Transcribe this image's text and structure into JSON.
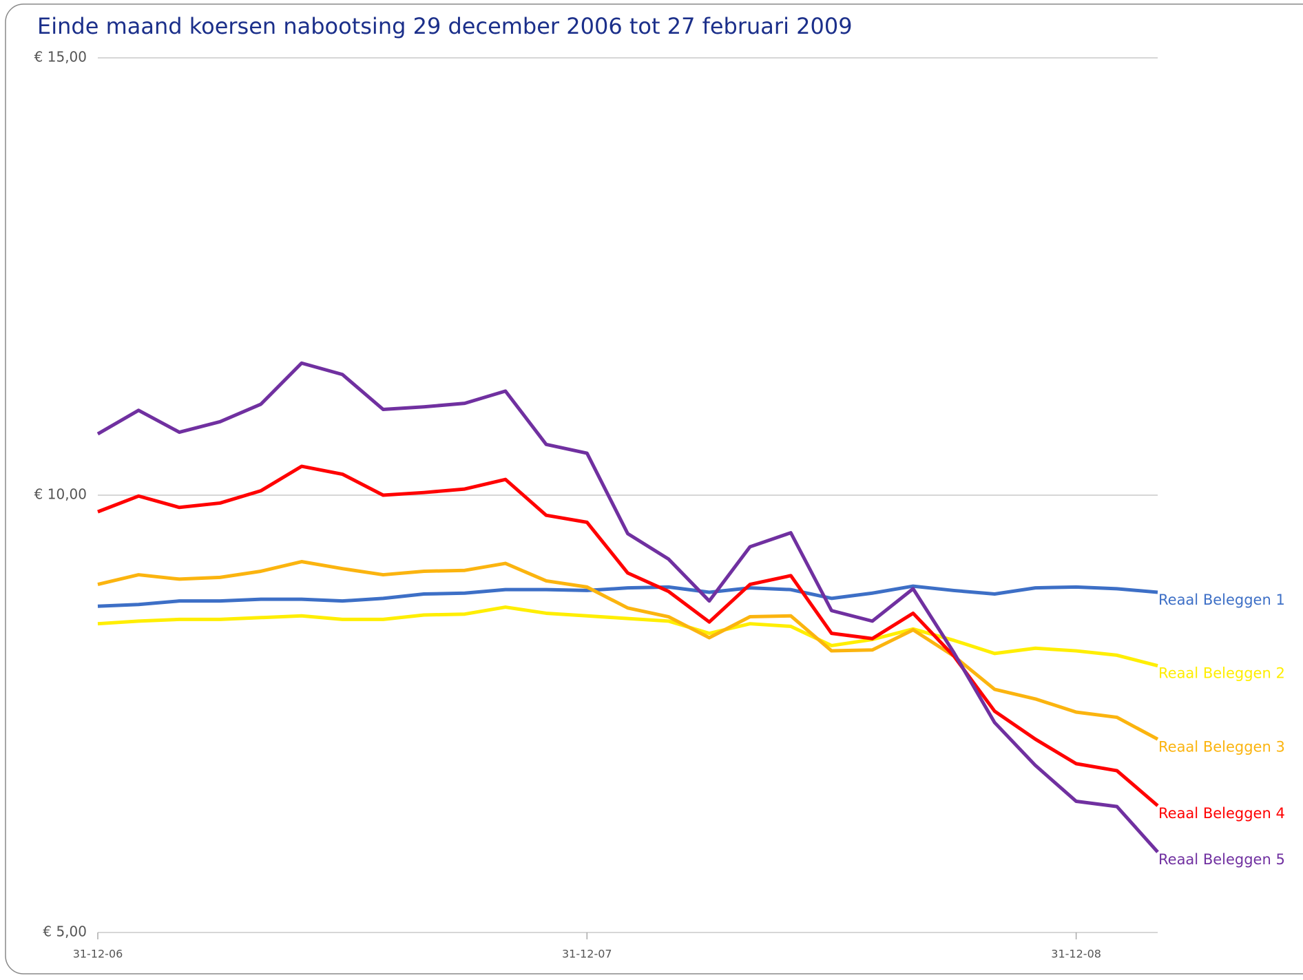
{
  "chart_data": {
    "type": "line",
    "title": "Einde maand koersen nabootsing 29 december 2006 tot 27 februari 2009",
    "categories": [
      "31-12-06",
      null,
      null,
      null,
      null,
      null,
      null,
      null,
      null,
      null,
      null,
      null,
      "31-12-07",
      null,
      null,
      null,
      null,
      null,
      null,
      null,
      null,
      null,
      null,
      null,
      "31-12-08",
      null,
      null
    ],
    "ylim": [
      5,
      15
    ],
    "yticks": [
      {
        "value": 5,
        "label": "€ 5,00"
      },
      {
        "value": 10,
        "label": "€ 10,00"
      },
      {
        "value": 15,
        "label": "€ 15,00"
      }
    ],
    "grid": true,
    "series": [
      {
        "name": "Reaal Beleggen 1",
        "color": "#3d6fc6",
        "values": [
          8.73,
          8.75,
          8.79,
          8.79,
          8.81,
          8.81,
          8.79,
          8.82,
          8.87,
          8.88,
          8.92,
          8.92,
          8.91,
          8.94,
          8.95,
          8.89,
          8.94,
          8.92,
          8.82,
          8.88,
          8.96,
          8.91,
          8.87,
          8.94,
          8.95,
          8.93,
          8.89
        ]
      },
      {
        "name": "Reaal Beleggen 2",
        "color": "#ffee00",
        "values": [
          8.53,
          8.56,
          8.58,
          8.58,
          8.6,
          8.62,
          8.58,
          8.58,
          8.63,
          8.64,
          8.72,
          8.65,
          8.62,
          8.59,
          8.56,
          8.42,
          8.53,
          8.5,
          8.28,
          8.35,
          8.47,
          8.34,
          8.19,
          8.25,
          8.22,
          8.17,
          8.05
        ]
      },
      {
        "name": "Reaal Beleggen 3",
        "color": "#fbb40f",
        "values": [
          8.98,
          9.09,
          9.04,
          9.06,
          9.13,
          9.24,
          9.16,
          9.09,
          9.13,
          9.14,
          9.22,
          9.02,
          8.95,
          8.71,
          8.61,
          8.37,
          8.61,
          8.62,
          8.22,
          8.23,
          8.46,
          8.16,
          7.78,
          7.67,
          7.52,
          7.46,
          7.21
        ]
      },
      {
        "name": "Reaal Beleggen 4",
        "color": "#ff0000",
        "values": [
          9.81,
          9.99,
          9.86,
          9.91,
          10.05,
          10.33,
          10.24,
          10.0,
          10.03,
          10.07,
          10.18,
          9.77,
          9.69,
          9.11,
          8.9,
          8.55,
          8.98,
          9.08,
          8.42,
          8.36,
          8.65,
          8.16,
          7.53,
          7.21,
          6.93,
          6.85,
          6.45
        ]
      },
      {
        "name": "Reaal Beleggen 5",
        "color": "#7030a0",
        "values": [
          10.7,
          10.97,
          10.72,
          10.84,
          11.04,
          11.51,
          11.38,
          10.98,
          11.01,
          11.05,
          11.19,
          10.58,
          10.48,
          9.56,
          9.27,
          8.79,
          9.41,
          9.57,
          8.68,
          8.56,
          8.93,
          8.2,
          7.4,
          6.91,
          6.5,
          6.44,
          5.92
        ]
      }
    ]
  }
}
